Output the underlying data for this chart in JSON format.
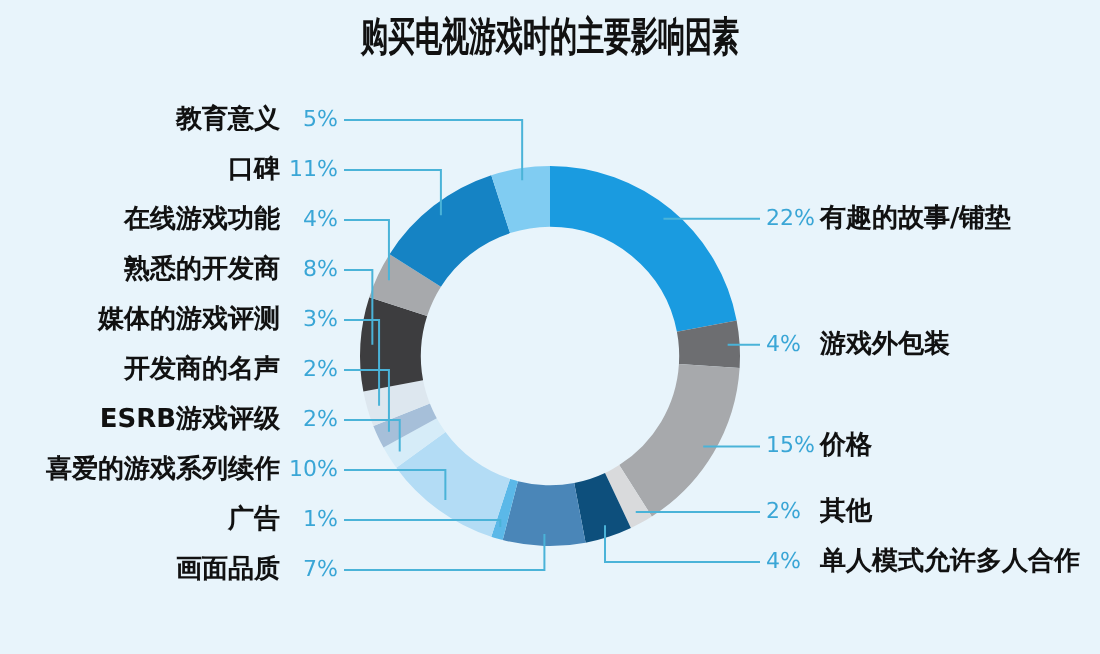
{
  "chart_data": {
    "type": "donut",
    "title": "购买电视游戏时的主要影响因素",
    "categories": [
      "有趣的故事/铺垫",
      "游戏外包装",
      "价格",
      "其他",
      "单人模式允许多人合作",
      "画面品质",
      "广告",
      "喜爱的游戏系列续作",
      "ESRB游戏评级",
      "开发商的名声",
      "媒体的游戏评测",
      "熟悉的开发商",
      "在线游戏功能",
      "口碑",
      "教育意义"
    ],
    "values": [
      22,
      4,
      15,
      2,
      4,
      7,
      1,
      10,
      2,
      2,
      3,
      8,
      4,
      11,
      5
    ],
    "value_labels": [
      "22%",
      "4%",
      "15%",
      "2%",
      "4%",
      "7%",
      "1%",
      "10%",
      "2%",
      "2%",
      "3%",
      "8%",
      "4%",
      "11%",
      "5%"
    ],
    "colors": [
      "#1a9be0",
      "#6d6e71",
      "#a7a9ac",
      "#d9dadc",
      "#0d4f7c",
      "#4a86b8",
      "#5bb8e8",
      "#b3dcf5",
      "#d6ecf8",
      "#a6bfd9",
      "#dde7ef",
      "#3d3d3f",
      "#a7a9ac",
      "#1583c4",
      "#80ccf2"
    ],
    "legend": false
  }
}
